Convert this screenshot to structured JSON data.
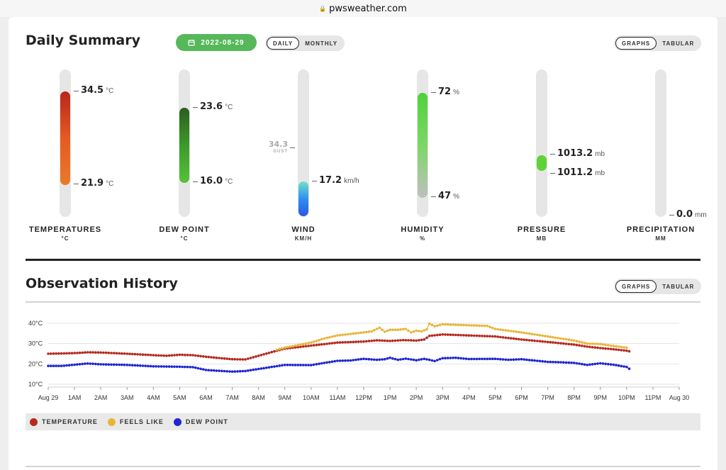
{
  "browser": {
    "url": "pwsweather.com"
  },
  "daily": {
    "title": "Daily Summary",
    "date": "2022-08-29",
    "toggle": [
      "DAILY",
      "MONTHLY"
    ],
    "view": [
      "GRAPHS",
      "TABULAR"
    ]
  },
  "gauges": {
    "temperature": {
      "label": "TEMPERATURES",
      "unit_caption": "°C",
      "high": "34.5",
      "high_unit": "°C",
      "low": "21.9",
      "low_unit": "°C"
    },
    "dewpoint": {
      "label": "DEW POINT",
      "unit_caption": "°C",
      "high": "23.6",
      "high_unit": "°C",
      "low": "16.0",
      "low_unit": "°C"
    },
    "wind": {
      "label": "WIND",
      "unit_caption": "KM/H",
      "gust": "34.3",
      "gust_label": "GUST",
      "value": "17.2",
      "value_unit": "km/h"
    },
    "humidity": {
      "label": "HUMIDITY",
      "unit_caption": "%",
      "high": "72",
      "high_unit": "%",
      "low": "47",
      "low_unit": "%"
    },
    "pressure": {
      "label": "PRESSURE",
      "unit_caption": "MB",
      "high": "1013.2",
      "high_unit": "mb",
      "low": "1011.2",
      "low_unit": "mb"
    },
    "precipitation": {
      "label": "PRECIPITATION",
      "unit_caption": "MM",
      "value": "0.0",
      "value_unit": "mm"
    }
  },
  "history": {
    "title": "Observation History",
    "view": [
      "GRAPHS",
      "TABULAR"
    ],
    "legend": [
      {
        "label": "TEMPERATURE",
        "color": "#b52a1f"
      },
      {
        "label": "FEELS LIKE",
        "color": "#e8b53c"
      },
      {
        "label": "DEW POINT",
        "color": "#1f26d1"
      }
    ]
  },
  "chart_data": {
    "type": "line",
    "x_tick_labels": [
      "Aug 29",
      "1AM",
      "2AM",
      "3AM",
      "4AM",
      "5AM",
      "6AM",
      "7AM",
      "8AM",
      "9AM",
      "10AM",
      "11AM",
      "12PM",
      "1PM",
      "2PM",
      "3PM",
      "4PM",
      "5PM",
      "6PM",
      "7PM",
      "8PM",
      "9PM",
      "10PM",
      "11PM",
      "Aug 30"
    ],
    "y_tick_labels": [
      "40°C",
      "30°C",
      "20°C",
      "10°C"
    ],
    "ylim": [
      10,
      40
    ],
    "xlim_hours": [
      0,
      24
    ],
    "grid": true,
    "series": [
      {
        "name": "TEMPERATURE",
        "color": "#b52a1f",
        "points": [
          [
            0,
            25.0
          ],
          [
            1,
            25.3
          ],
          [
            1.5,
            25.7
          ],
          [
            2,
            25.6
          ],
          [
            3,
            25.0
          ],
          [
            4,
            24.3
          ],
          [
            4.5,
            24.0
          ],
          [
            5,
            24.5
          ],
          [
            5.5,
            24.3
          ],
          [
            6,
            23.5
          ],
          [
            7,
            22.3
          ],
          [
            7.5,
            22.2
          ],
          [
            8,
            24.0
          ],
          [
            8.7,
            26.5
          ],
          [
            9,
            27.5
          ],
          [
            10,
            29.0
          ],
          [
            11,
            30.5
          ],
          [
            12,
            31.0
          ],
          [
            12.5,
            31.6
          ],
          [
            13,
            31.3
          ],
          [
            13.5,
            31.7
          ],
          [
            14,
            31.5
          ],
          [
            14.3,
            32.0
          ],
          [
            14.5,
            33.8
          ],
          [
            15,
            34.5
          ],
          [
            16,
            34.0
          ],
          [
            17,
            33.5
          ],
          [
            18,
            32.0
          ],
          [
            19,
            30.8
          ],
          [
            20,
            29.5
          ],
          [
            20.5,
            28.5
          ],
          [
            21,
            27.8
          ],
          [
            21.5,
            27.2
          ],
          [
            22,
            26.5
          ],
          [
            22.1,
            26.2
          ]
        ]
      },
      {
        "name": "FEELS LIKE",
        "color": "#e8b53c",
        "points": [
          [
            8.7,
            27.0
          ],
          [
            9,
            28.0
          ],
          [
            10,
            30.5
          ],
          [
            10.5,
            32.5
          ],
          [
            11,
            34.0
          ],
          [
            12,
            35.5
          ],
          [
            12.3,
            36.0
          ],
          [
            12.6,
            37.8
          ],
          [
            12.8,
            35.8
          ],
          [
            13,
            36.8
          ],
          [
            13.3,
            36.8
          ],
          [
            13.6,
            37.2
          ],
          [
            13.8,
            35.5
          ],
          [
            14,
            36.3
          ],
          [
            14.2,
            36.0
          ],
          [
            14.4,
            37.0
          ],
          [
            14.5,
            39.8
          ],
          [
            14.7,
            38.5
          ],
          [
            15,
            39.5
          ],
          [
            16,
            39.0
          ],
          [
            16.7,
            38.7
          ],
          [
            17,
            37.2
          ],
          [
            18,
            35.5
          ],
          [
            19,
            33.5
          ],
          [
            20,
            31.5
          ],
          [
            20.5,
            30.0
          ],
          [
            21,
            29.8
          ],
          [
            21.5,
            28.8
          ],
          [
            22,
            28.0
          ]
        ]
      },
      {
        "name": "DEW POINT",
        "color": "#1f26d1",
        "points": [
          [
            0,
            19.0
          ],
          [
            0.5,
            19.0
          ],
          [
            1,
            19.6
          ],
          [
            1.5,
            20.2
          ],
          [
            2,
            19.8
          ],
          [
            3,
            19.5
          ],
          [
            4,
            18.8
          ],
          [
            5,
            18.6
          ],
          [
            5.5,
            18.4
          ],
          [
            6,
            17.0
          ],
          [
            7,
            16.2
          ],
          [
            7.5,
            16.5
          ],
          [
            8,
            17.5
          ],
          [
            8.5,
            18.5
          ],
          [
            9,
            19.5
          ],
          [
            10,
            19.4
          ],
          [
            10.5,
            20.5
          ],
          [
            11,
            21.5
          ],
          [
            11.5,
            21.7
          ],
          [
            12,
            22.5
          ],
          [
            12.5,
            22.0
          ],
          [
            12.8,
            22.3
          ],
          [
            13,
            23.0
          ],
          [
            13.3,
            22.0
          ],
          [
            13.6,
            22.6
          ],
          [
            14,
            21.8
          ],
          [
            14.3,
            22.5
          ],
          [
            14.5,
            22.0
          ],
          [
            14.7,
            21.4
          ],
          [
            15,
            22.8
          ],
          [
            15.5,
            23.0
          ],
          [
            16,
            22.4
          ],
          [
            17,
            22.5
          ],
          [
            17.5,
            22.0
          ],
          [
            18,
            22.3
          ],
          [
            19,
            21.0
          ],
          [
            19.5,
            20.8
          ],
          [
            20,
            20.5
          ],
          [
            20.5,
            19.5
          ],
          [
            21,
            20.3
          ],
          [
            21.5,
            19.6
          ],
          [
            22,
            18.5
          ],
          [
            22.1,
            17.6
          ]
        ]
      }
    ]
  }
}
